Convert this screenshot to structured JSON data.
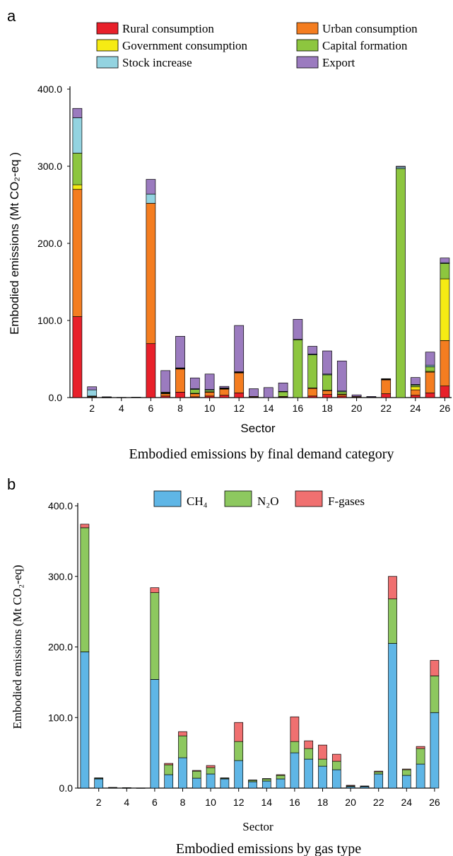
{
  "chart_data": [
    {
      "type": "bar",
      "stacked": true,
      "panel_label": "a",
      "caption": "Embodied emissions by final demand category",
      "xlabel": "Sector",
      "ylabel": "Embodied emissions  (Mt CO₂-eq )",
      "ylim": [
        0,
        400
      ],
      "yticks": [
        "0.0",
        "100.0",
        "200.0",
        "300.0",
        "400.0"
      ],
      "xticks": [
        "2",
        "4",
        "6",
        "8",
        "10",
        "12",
        "14",
        "16",
        "18",
        "20",
        "22",
        "24",
        "26"
      ],
      "categories": [
        "1",
        "2",
        "3",
        "4",
        "5",
        "6",
        "7",
        "8",
        "9",
        "10",
        "11",
        "12",
        "13",
        "14",
        "15",
        "16",
        "17",
        "18",
        "19",
        "20",
        "21",
        "22",
        "23",
        "24",
        "25",
        "26"
      ],
      "legend_position": "top",
      "series": [
        {
          "name": "Rural consumption",
          "color": "#e8202a",
          "values": [
            105,
            0.5,
            0.3,
            0,
            0,
            70,
            2,
            7,
            1,
            2,
            3,
            6,
            0.5,
            0,
            0.5,
            0,
            2,
            4,
            2,
            0.5,
            0,
            5,
            0,
            3,
            6,
            15
          ]
        },
        {
          "name": "Urban consumption",
          "color": "#f47d20",
          "values": [
            165,
            1,
            0.3,
            0,
            0.4,
            182,
            3,
            30,
            4,
            5,
            8,
            26,
            1,
            0,
            1,
            0,
            10,
            5,
            2,
            1,
            0.5,
            18,
            0,
            7,
            27,
            59
          ]
        },
        {
          "name": "Government consumption",
          "color": "#f6eb14",
          "values": [
            6,
            0,
            0,
            0,
            0,
            0,
            0.5,
            0.5,
            0.5,
            0.5,
            0.5,
            0.5,
            0,
            0,
            0,
            0,
            0.5,
            0.5,
            0.5,
            0,
            0,
            0.5,
            0,
            4,
            1,
            80
          ]
        },
        {
          "name": "Capital formation",
          "color": "#8dc63f",
          "values": [
            41,
            0.5,
            0,
            0,
            0,
            0,
            1,
            0.5,
            5,
            2,
            0.5,
            0.5,
            0,
            0,
            6,
            75,
            43,
            20,
            3,
            0,
            0,
            0.5,
            297,
            2,
            6,
            20
          ]
        },
        {
          "name": "Stock increase",
          "color": "#93d3e0",
          "values": [
            46,
            8,
            0,
            0,
            0,
            12,
            0.5,
            0.5,
            1,
            1,
            0.5,
            0.5,
            0,
            0,
            0.5,
            0.5,
            1,
            1,
            1,
            0,
            0,
            0,
            2,
            1,
            2,
            1
          ]
        },
        {
          "name": "Export",
          "color": "#9b7bbf",
          "values": [
            12,
            4,
            0.4,
            0.3,
            0.1,
            19,
            28,
            41,
            14,
            20,
            2,
            60,
            10,
            13,
            11,
            26,
            10,
            30,
            39,
            2,
            1,
            0.5,
            1,
            9,
            17,
            6
          ]
        }
      ]
    },
    {
      "type": "bar",
      "stacked": true,
      "panel_label": "b",
      "caption": "Embodied emissions by gas type",
      "xlabel": "Sector",
      "ylabel": "Embodied emissions  (Mt CO₂-eq)",
      "ylim": [
        0,
        400
      ],
      "yticks": [
        "0.0",
        "100.0",
        "200.0",
        "300.0",
        "400.0"
      ],
      "xticks": [
        "2",
        "4",
        "6",
        "8",
        "10",
        "12",
        "14",
        "16",
        "18",
        "20",
        "22",
        "24",
        "26"
      ],
      "categories": [
        "1",
        "2",
        "3",
        "4",
        "5",
        "6",
        "7",
        "8",
        "9",
        "10",
        "11",
        "12",
        "13",
        "14",
        "15",
        "16",
        "17",
        "18",
        "19",
        "20",
        "21",
        "22",
        "23",
        "24",
        "25",
        "26"
      ],
      "legend_position": "top",
      "series": [
        {
          "name": "CH₄",
          "color": "#5fb6e6",
          "values": [
            193,
            13,
            0.5,
            0.3,
            0.2,
            154,
            19,
            43,
            14,
            20,
            13,
            39,
            9,
            10,
            13,
            50,
            41,
            31,
            26,
            2,
            2,
            20,
            205,
            18,
            34,
            107
          ]
        },
        {
          "name": "N₂O",
          "color": "#8dc85f",
          "values": [
            176,
            1,
            0.5,
            0.3,
            0,
            123,
            14,
            31,
            10,
            9,
            1,
            27,
            2,
            3,
            5,
            16,
            15,
            10,
            12,
            1,
            0.5,
            3,
            63,
            8,
            22,
            52
          ]
        },
        {
          "name": "F-gases",
          "color": "#f07070",
          "values": [
            5,
            0.5,
            0,
            0,
            0,
            7,
            2,
            6,
            1,
            3,
            0.5,
            27,
            0.5,
            0.5,
            1,
            35,
            11,
            20,
            10,
            1,
            0.5,
            1,
            32,
            1,
            3,
            22
          ]
        }
      ]
    }
  ]
}
